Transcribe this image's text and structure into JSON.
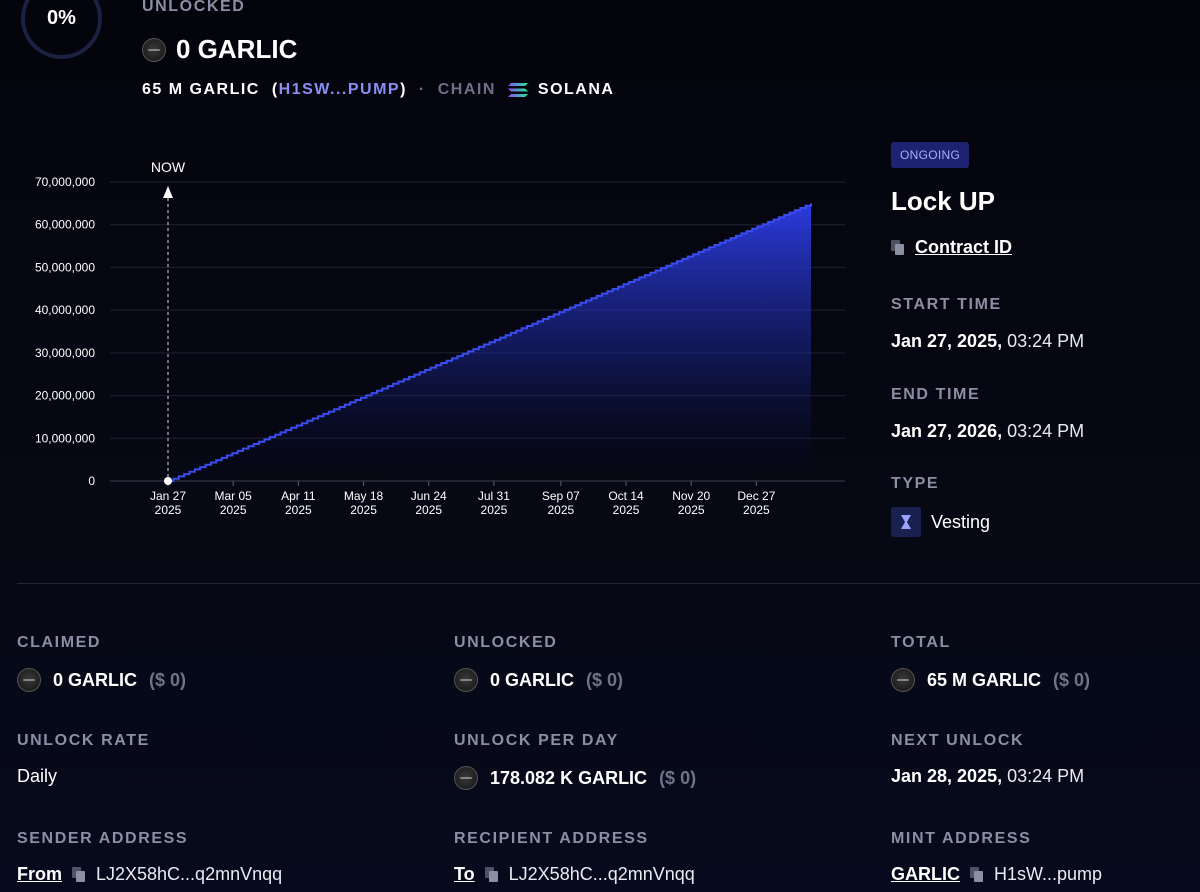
{
  "header": {
    "percent": "0%",
    "unlocked_label": "UNLOCKED",
    "amount": "0 GARLIC",
    "total_prefix": "65 M GARLIC",
    "paren_open": "(",
    "token_address": "H1SW...PUMP",
    "paren_close": ")",
    "separator": "·",
    "chain_label": "CHAIN",
    "chain_name": "SOLANA"
  },
  "side": {
    "status": "ONGOING",
    "title": "Lock UP",
    "contract_link": "Contract ID",
    "start_label": "START TIME",
    "start_date": "Jan 27, 2025,",
    "start_time": " 03:24 PM",
    "end_label": "END TIME",
    "end_date": "Jan 27, 2026,",
    "end_time": " 03:24 PM",
    "type_label": "TYPE",
    "type_value": "Vesting"
  },
  "stats": {
    "claimed_label": "CLAIMED",
    "claimed_amount": "0 GARLIC",
    "claimed_usd": "($ 0)",
    "unlocked_label": "UNLOCKED",
    "unlocked_amount": "0 GARLIC",
    "unlocked_usd": "($ 0)",
    "total_label": "TOTAL",
    "total_amount": "65 M GARLIC",
    "total_usd": "($ 0)",
    "rate_label": "UNLOCK RATE",
    "rate_value": "Daily",
    "per_day_label": "UNLOCK PER DAY",
    "per_day_amount": "178.082 K GARLIC",
    "per_day_usd": "($ 0)",
    "next_label": "NEXT UNLOCK",
    "next_date": "Jan 28, 2025,",
    "next_time": " 03:24 PM",
    "sender_label": "SENDER ADDRESS",
    "sender_link": "From",
    "sender_value": "LJ2X58hC...q2mnVnqq",
    "recipient_label": "RECIPIENT ADDRESS",
    "recipient_link": "To",
    "recipient_value": "LJ2X58hC...q2mnVnqq",
    "mint_label": "MINT ADDRESS",
    "mint_link": "GARLIC",
    "mint_value": "H1sW...pump"
  },
  "colors": {
    "accent": "#3b4cf0",
    "link": "#8b8ff5",
    "muted": "#8a8fa3",
    "badge_bg": "#1d2370"
  },
  "chart_data": {
    "type": "area",
    "now_label": "NOW",
    "y_ticks": [
      "0",
      "10,000,000",
      "20,000,000",
      "30,000,000",
      "40,000,000",
      "50,000,000",
      "60,000,000",
      "70,000,000"
    ],
    "ylim": [
      0,
      70000000
    ],
    "x_ticks": [
      {
        "l1": "Jan 27",
        "l2": "2025",
        "day": 0
      },
      {
        "l1": "Mar 05",
        "l2": "2025",
        "day": 37
      },
      {
        "l1": "Apr 11",
        "l2": "2025",
        "day": 74
      },
      {
        "l1": "May 18",
        "l2": "2025",
        "day": 111
      },
      {
        "l1": "Jun 24",
        "l2": "2025",
        "day": 148
      },
      {
        "l1": "Jul 31",
        "l2": "2025",
        "day": 185
      },
      {
        "l1": "Sep 07",
        "l2": "2025",
        "day": 223
      },
      {
        "l1": "Oct 14",
        "l2": "2025",
        "day": 260
      },
      {
        "l1": "Nov 20",
        "l2": "2025",
        "day": 297
      },
      {
        "l1": "Dec 27",
        "l2": "2025",
        "day": 334
      }
    ],
    "xlim_days": [
      0,
      365
    ],
    "series": [
      {
        "values_start": 0,
        "values_end": 65000000,
        "start_day": 0,
        "end_day": 365
      }
    ],
    "grid": true
  }
}
